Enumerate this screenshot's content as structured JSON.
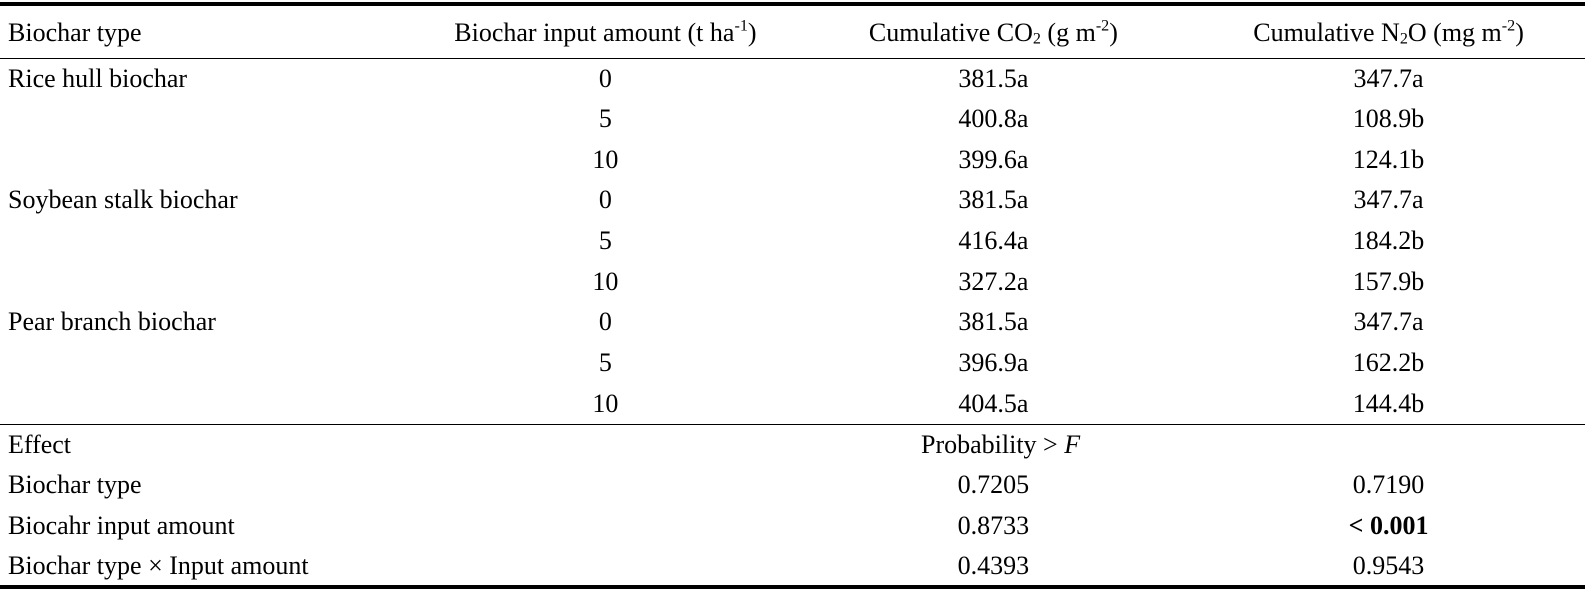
{
  "header": {
    "col1": "Biochar type",
    "col2": {
      "text": "Biochar input amount (t ha",
      "sup": "-1",
      "tail": ")"
    },
    "col3": {
      "pre": "Cumulative CO",
      "sub": "2",
      "mid": " (g m",
      "sup": "-2",
      "tail": ")"
    },
    "col4": {
      "pre": "Cumulative N",
      "sub": "2",
      "mid": "O (mg m",
      "sup": "-2",
      "tail": ")"
    }
  },
  "rows": [
    {
      "type": "Rice hull biochar",
      "amount": "0",
      "co2": "381.5a",
      "n2o": "347.7a"
    },
    {
      "type": "",
      "amount": "5",
      "co2": "400.8a",
      "n2o": "108.9b"
    },
    {
      "type": "",
      "amount": "10",
      "co2": "399.6a",
      "n2o": "124.1b"
    },
    {
      "type": "Soybean stalk biochar",
      "amount": "0",
      "co2": "381.5a",
      "n2o": "347.7a"
    },
    {
      "type": "",
      "amount": "5",
      "co2": "416.4a",
      "n2o": "184.2b"
    },
    {
      "type": "",
      "amount": "10",
      "co2": "327.2a",
      "n2o": "157.9b"
    },
    {
      "type": "Pear branch biochar",
      "amount": "0",
      "co2": "381.5a",
      "n2o": "347.7a"
    },
    {
      "type": "",
      "amount": "5",
      "co2": "396.9a",
      "n2o": "162.2b"
    },
    {
      "type": "",
      "amount": "10",
      "co2": "404.5a",
      "n2o": "144.4b"
    }
  ],
  "effect": {
    "label": "Effect",
    "probability_label": "Probability > ",
    "probability_var": "F"
  },
  "effect_rows": [
    {
      "label": "Biochar type",
      "co2": "0.7205",
      "n2o": "0.7190",
      "n2o_bold": false
    },
    {
      "label": "Biocahr input amount",
      "co2": "0.8733",
      "n2o": "< 0.001",
      "n2o_bold": true
    },
    {
      "label": "Biochar type × Input amount",
      "co2": "0.4393",
      "n2o": "0.9543",
      "n2o_bold": false
    }
  ]
}
